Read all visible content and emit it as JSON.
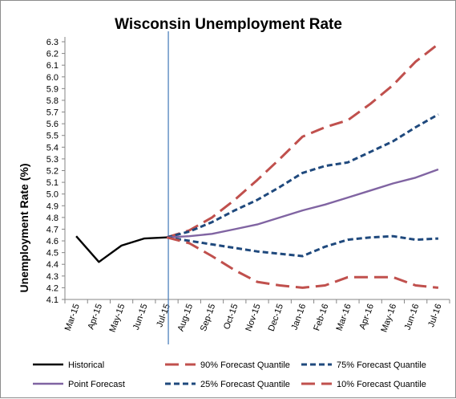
{
  "chart_data": {
    "type": "line",
    "title": "Wisconsin Unemployment Rate",
    "xlabel": "",
    "ylabel": "Unemployment Rate (%)",
    "ylim": [
      4.1,
      6.3
    ],
    "ytick_step": 0.1,
    "grid": false,
    "legend_position": "bottom",
    "categories": [
      "Mar-15",
      "Apr-15",
      "May-15",
      "Jun-15",
      "Jul-15",
      "Aug-15",
      "Sep-15",
      "Oct-15",
      "Nov-15",
      "Dec-15",
      "Jan-16",
      "Feb-16",
      "Mar-16",
      "Apr-16",
      "May-16",
      "Jun-16",
      "Jul-16"
    ],
    "marker_line_category": "Jul-15",
    "marker_line_color": "#4f81bd",
    "series": [
      {
        "name": "Historical",
        "color": "#000000",
        "dash": "solid",
        "width": 2.4,
        "values": [
          4.64,
          4.42,
          4.56,
          4.62,
          4.63,
          null,
          null,
          null,
          null,
          null,
          null,
          null,
          null,
          null,
          null,
          null,
          null
        ]
      },
      {
        "name": "90% Forecast Quantile",
        "color": "#c0504d",
        "dash": "long",
        "width": 3,
        "values": [
          null,
          null,
          null,
          null,
          4.63,
          4.69,
          4.8,
          4.95,
          5.12,
          5.3,
          5.49,
          5.57,
          5.63,
          5.77,
          5.93,
          6.13,
          6.28
        ]
      },
      {
        "name": "75% Forecast Quantile",
        "color": "#1f497d",
        "dash": "short",
        "width": 3,
        "values": [
          null,
          null,
          null,
          null,
          4.63,
          4.68,
          4.76,
          4.86,
          4.95,
          5.06,
          5.18,
          5.24,
          5.27,
          5.36,
          5.45,
          5.57,
          5.68
        ]
      },
      {
        "name": "Point Forecast",
        "color": "#8064a2",
        "dash": "solid",
        "width": 2.4,
        "values": [
          null,
          null,
          null,
          null,
          4.63,
          4.64,
          4.66,
          4.7,
          4.74,
          4.8,
          4.86,
          4.91,
          4.97,
          5.03,
          5.09,
          5.14,
          5.21
        ]
      },
      {
        "name": "25% Forecast Quantile",
        "color": "#1f497d",
        "dash": "short",
        "width": 3,
        "values": [
          null,
          null,
          null,
          null,
          4.63,
          4.6,
          4.57,
          4.54,
          4.51,
          4.49,
          4.47,
          4.55,
          4.61,
          4.63,
          4.64,
          4.61,
          4.62
        ]
      },
      {
        "name": "10% Forecast Quantile",
        "color": "#c0504d",
        "dash": "long",
        "width": 3,
        "values": [
          null,
          null,
          null,
          null,
          4.63,
          4.58,
          4.47,
          4.35,
          4.25,
          4.22,
          4.2,
          4.22,
          4.29,
          4.29,
          4.29,
          4.22,
          4.2
        ]
      }
    ]
  }
}
